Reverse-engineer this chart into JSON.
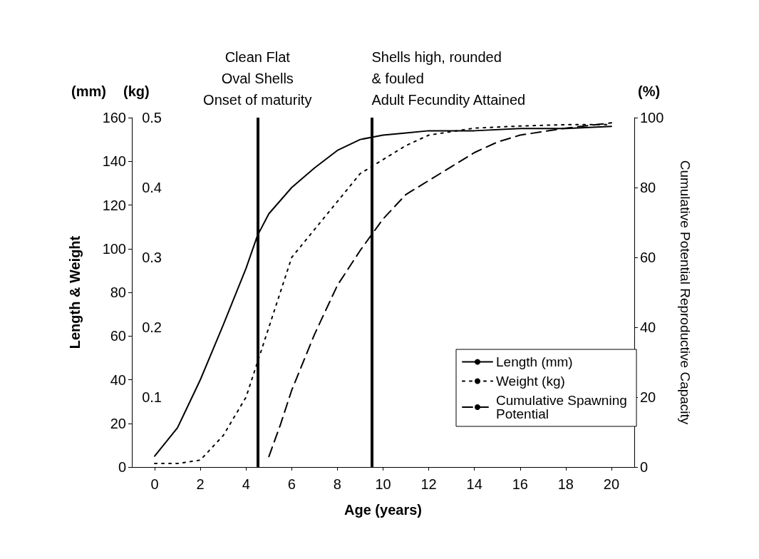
{
  "chart_data": {
    "type": "line",
    "xlabel": "Age (years)",
    "ylabel": "Length & Weight",
    "y2label": "(kg)",
    "y3label": "Cumulative Potential Reproductive Capacity",
    "annotations": [
      "(mm)",
      "(%)"
    ],
    "xlim": [
      -1,
      21
    ],
    "xticks": [
      0,
      2,
      4,
      6,
      8,
      10,
      12,
      14,
      16,
      18,
      20
    ],
    "ylim": [
      0,
      160
    ],
    "yticks": [
      0,
      20,
      40,
      60,
      80,
      100,
      120,
      140,
      160
    ],
    "y2lim": [
      0,
      0.5
    ],
    "y2ticks": [
      0.1,
      0.2,
      0.3,
      0.4,
      0.5
    ],
    "y3lim": [
      0,
      100
    ],
    "y3ticks": [
      0,
      20,
      40,
      60,
      80,
      100
    ],
    "grid": false,
    "legend": "bottom right",
    "marker": "none",
    "ref_lines": [
      {
        "axis": "x",
        "value": 4.5,
        "label": "Clean Flat\nOval Shells\nOnset of maturity",
        "color": "#000000"
      },
      {
        "axis": "x",
        "value": 9.5,
        "label": "Shells high, rounded\n& fouled\nAdult Fecundity Attained",
        "color": "#000000"
      }
    ],
    "series": [
      {
        "name": "Length (mm)",
        "color": "#000000",
        "line_style": "solid",
        "x": [
          0,
          1,
          2,
          3,
          4,
          4.5,
          5,
          6,
          7,
          8,
          9,
          10,
          11,
          12,
          14,
          16,
          18,
          20
        ],
        "values": [
          5,
          18,
          40,
          65,
          91,
          106,
          116,
          128,
          137,
          145,
          150,
          152,
          153,
          154,
          154,
          155,
          155,
          156
        ]
      },
      {
        "name": "Weight (kg)",
        "color": "#000000",
        "line_style": "dotted",
        "axis": "y2",
        "x": [
          0,
          1,
          2,
          3,
          4,
          4.5,
          5,
          6,
          7,
          8,
          9,
          10,
          11,
          12,
          14,
          16,
          18,
          20
        ],
        "values": [
          0.005,
          0.005,
          0.01,
          0.045,
          0.1,
          0.15,
          0.2,
          0.3,
          0.34,
          0.38,
          0.42,
          0.44,
          0.46,
          0.475,
          0.485,
          0.488,
          0.49,
          0.49
        ]
      },
      {
        "name": "Cumulative Spawning Potential",
        "color": "#000000",
        "line_style": "dashed",
        "axis": "y3",
        "x": [
          5,
          5.5,
          6,
          7,
          8,
          9,
          10,
          11,
          12,
          13,
          14,
          15,
          16,
          18,
          20
        ],
        "values": [
          3,
          12,
          22,
          38,
          52,
          62,
          71,
          78,
          82,
          86,
          90,
          93,
          95,
          97,
          98.5
        ]
      }
    ]
  }
}
